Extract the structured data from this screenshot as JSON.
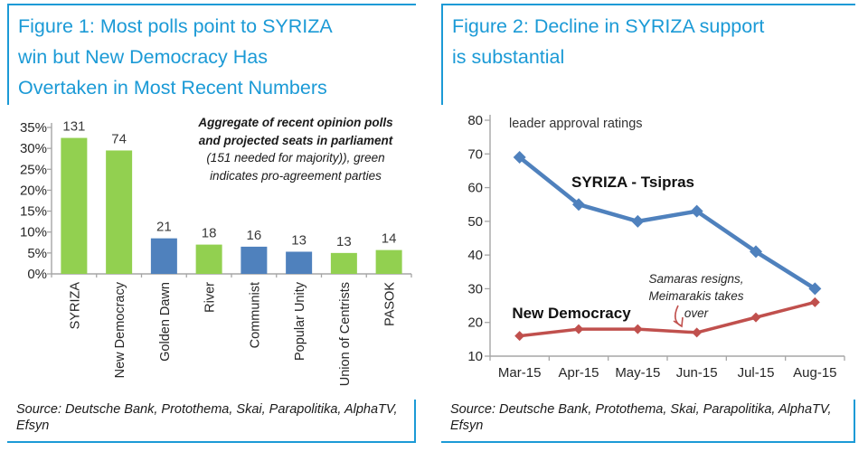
{
  "page": {
    "accent_blue": "#1b9ad6",
    "axis_gray": "#a6a6a6",
    "text_dark": "#262626"
  },
  "figure1": {
    "title_lines": [
      "Figure 1: Most polls point to SYRIZA",
      "win but New Democracy Has",
      "Overtaken in Most Recent Numbers"
    ],
    "source": "Source: Deutsche Bank, Protothema, Skai, Parapolitika, AlphaTV, Efsyn"
  },
  "figure2": {
    "title_lines": [
      "Figure 2: Decline in SYRIZA support",
      "is substantial"
    ],
    "source": "Source: Deutsche Bank, Protothema, Skai, Parapolitika, AlphaTV, Efsyn"
  },
  "chart_data": [
    {
      "type": "bar",
      "title": "Figure 1: Most polls point to SYRIZA win but New Democracy Has Overtaken in Most Recent Numbers",
      "categories": [
        "SYRIZA",
        "New Democracy",
        "Golden Dawn",
        "River",
        "Communist",
        "Popular Unity",
        "Union of Centrists",
        "PASOK"
      ],
      "values": [
        32.5,
        29.5,
        8.5,
        7.0,
        6.5,
        5.3,
        5.0,
        5.7
      ],
      "value_unit": "percent share of vote (est.)",
      "seat_labels": [
        "131",
        "74",
        "21",
        "18",
        "16",
        "13",
        "13",
        "14"
      ],
      "bar_colors": [
        "#92d050",
        "#92d050",
        "#4f81bd",
        "#92d050",
        "#4f81bd",
        "#4f81bd",
        "#92d050",
        "#92d050"
      ],
      "color_legend": {
        "green": "#92d050",
        "blue": "#4f81bd"
      },
      "yticks": [
        0,
        5,
        10,
        15,
        20,
        25,
        30,
        35
      ],
      "ytick_labels": [
        "0%",
        "5%",
        "10%",
        "15%",
        "20%",
        "25%",
        "30%",
        "35%"
      ],
      "ylim": [
        0,
        35
      ],
      "grid": false,
      "annotation": {
        "lines_bold": [
          "Aggregate of recent opinion polls",
          "and projected seats in parliament"
        ],
        "lines_italic": [
          "(151 needed for majority)), green",
          "indicates pro-agreement parties"
        ]
      }
    },
    {
      "type": "line",
      "title": "Figure 2: Decline in SYRIZA support is substantial",
      "subtitle": "leader approval ratings",
      "x": [
        "Mar-15",
        "Apr-15",
        "May-15",
        "Jun-15",
        "Jul-15",
        "Aug-15"
      ],
      "series": [
        {
          "name": "SYRIZA - Tsipras",
          "values": [
            69,
            55,
            50,
            53,
            41,
            30
          ],
          "color": "#4f81bd"
        },
        {
          "name": "New Democracy",
          "values": [
            16,
            18,
            18,
            17,
            21.5,
            26
          ],
          "color": "#c0504d"
        }
      ],
      "yticks": [
        10,
        20,
        30,
        40,
        50,
        60,
        70,
        80
      ],
      "ytick_labels": [
        "10",
        "20",
        "30",
        "40",
        "50",
        "60",
        "70",
        "80"
      ],
      "ylim": [
        10,
        80
      ],
      "grid": false,
      "legend_position": "inline-labels",
      "annotation": {
        "lines": [
          "Samaras resigns,",
          "Meimarakis takes",
          "over"
        ],
        "arrow_color": "#c0504d",
        "points_to": "Jun-15 New Democracy value"
      }
    }
  ]
}
